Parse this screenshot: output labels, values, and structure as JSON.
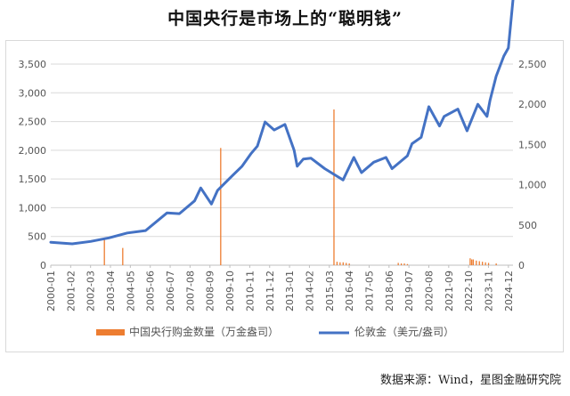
{
  "title": "中国央行是市场上的“聪明钱”",
  "source": "数据来源：Wind，星图金融研究院",
  "chart_data": {
    "type": "bar+line",
    "categories": [
      "2000-01",
      "2001-02",
      "2002-03",
      "2003-04",
      "2004-05",
      "2005-06",
      "2006-07",
      "2007-08",
      "2008-09",
      "2009-10",
      "2010-11",
      "2011-12",
      "2013-01",
      "2014-02",
      "2015-03",
      "2016-04",
      "2017-05",
      "2018-06",
      "2019-07",
      "2020-08",
      "2021-09",
      "2022-10",
      "2023-11",
      "2024-12"
    ],
    "left_axis": {
      "min": 0,
      "max": 3500,
      "ticks": [
        "0",
        "500",
        "1,000",
        "1,500",
        "2,000",
        "2,500",
        "3,000",
        "3,500"
      ]
    },
    "right_axis": {
      "min": 0,
      "max": 2500,
      "ticks": [
        "0",
        "500",
        "1,000",
        "1,500",
        "2,000",
        "2,500"
      ]
    },
    "grid": true,
    "legend_position": "bottom",
    "series": [
      {
        "name": "中国央行购金数量（万金盎司）",
        "type": "bar",
        "axis": "left",
        "color": "#ED7D31",
        "points": [
          [
            "2002-12",
            450
          ],
          [
            "2003-12",
            300
          ],
          [
            "2009-04",
            2040
          ],
          [
            "2015-06",
            2710
          ],
          [
            "2015-08",
            60
          ],
          [
            "2015-10",
            50
          ],
          [
            "2015-12",
            50
          ],
          [
            "2016-02",
            40
          ],
          [
            "2016-04",
            30
          ],
          [
            "2018-12",
            40
          ],
          [
            "2019-02",
            30
          ],
          [
            "2019-04",
            30
          ],
          [
            "2019-06",
            20
          ],
          [
            "2022-11",
            120
          ],
          [
            "2022-12",
            100
          ],
          [
            "2023-01",
            100
          ],
          [
            "2023-03",
            80
          ],
          [
            "2023-05",
            70
          ],
          [
            "2023-07",
            60
          ],
          [
            "2023-09",
            50
          ],
          [
            "2023-11",
            40
          ],
          [
            "2024-04",
            30
          ]
        ]
      },
      {
        "name": "伦敦金（美元/盎司）",
        "type": "line",
        "axis": "right",
        "color": "#4472C4",
        "points": [
          [
            "2000-01",
            285
          ],
          [
            "2001-03",
            265
          ],
          [
            "2002-03",
            295
          ],
          [
            "2003-03",
            340
          ],
          [
            "2004-03",
            400
          ],
          [
            "2005-03",
            430
          ],
          [
            "2006-05",
            650
          ],
          [
            "2007-01",
            640
          ],
          [
            "2007-11",
            800
          ],
          [
            "2008-03",
            960
          ],
          [
            "2008-10",
            760
          ],
          [
            "2009-02",
            930
          ],
          [
            "2009-12",
            1120
          ],
          [
            "2010-06",
            1230
          ],
          [
            "2010-12",
            1390
          ],
          [
            "2011-04",
            1480
          ],
          [
            "2011-09",
            1780
          ],
          [
            "2012-03",
            1680
          ],
          [
            "2012-10",
            1750
          ],
          [
            "2013-04",
            1430
          ],
          [
            "2013-06",
            1230
          ],
          [
            "2013-10",
            1320
          ],
          [
            "2014-03",
            1330
          ],
          [
            "2014-12",
            1200
          ],
          [
            "2015-12",
            1060
          ],
          [
            "2016-07",
            1340
          ],
          [
            "2016-12",
            1150
          ],
          [
            "2017-08",
            1280
          ],
          [
            "2018-04",
            1340
          ],
          [
            "2018-08",
            1200
          ],
          [
            "2019-06",
            1360
          ],
          [
            "2019-09",
            1510
          ],
          [
            "2020-03",
            1590
          ],
          [
            "2020-08",
            1970
          ],
          [
            "2021-03",
            1730
          ],
          [
            "2021-06",
            1850
          ],
          [
            "2022-03",
            1940
          ],
          [
            "2022-09",
            1670
          ],
          [
            "2023-04",
            2000
          ],
          [
            "2023-10",
            1850
          ],
          [
            "2023-12",
            2050
          ],
          [
            "2024-04",
            2350
          ],
          [
            "2024-09",
            2600
          ],
          [
            "2024-12",
            2700
          ],
          [
            "2025-03",
            3300
          ]
        ]
      }
    ]
  }
}
